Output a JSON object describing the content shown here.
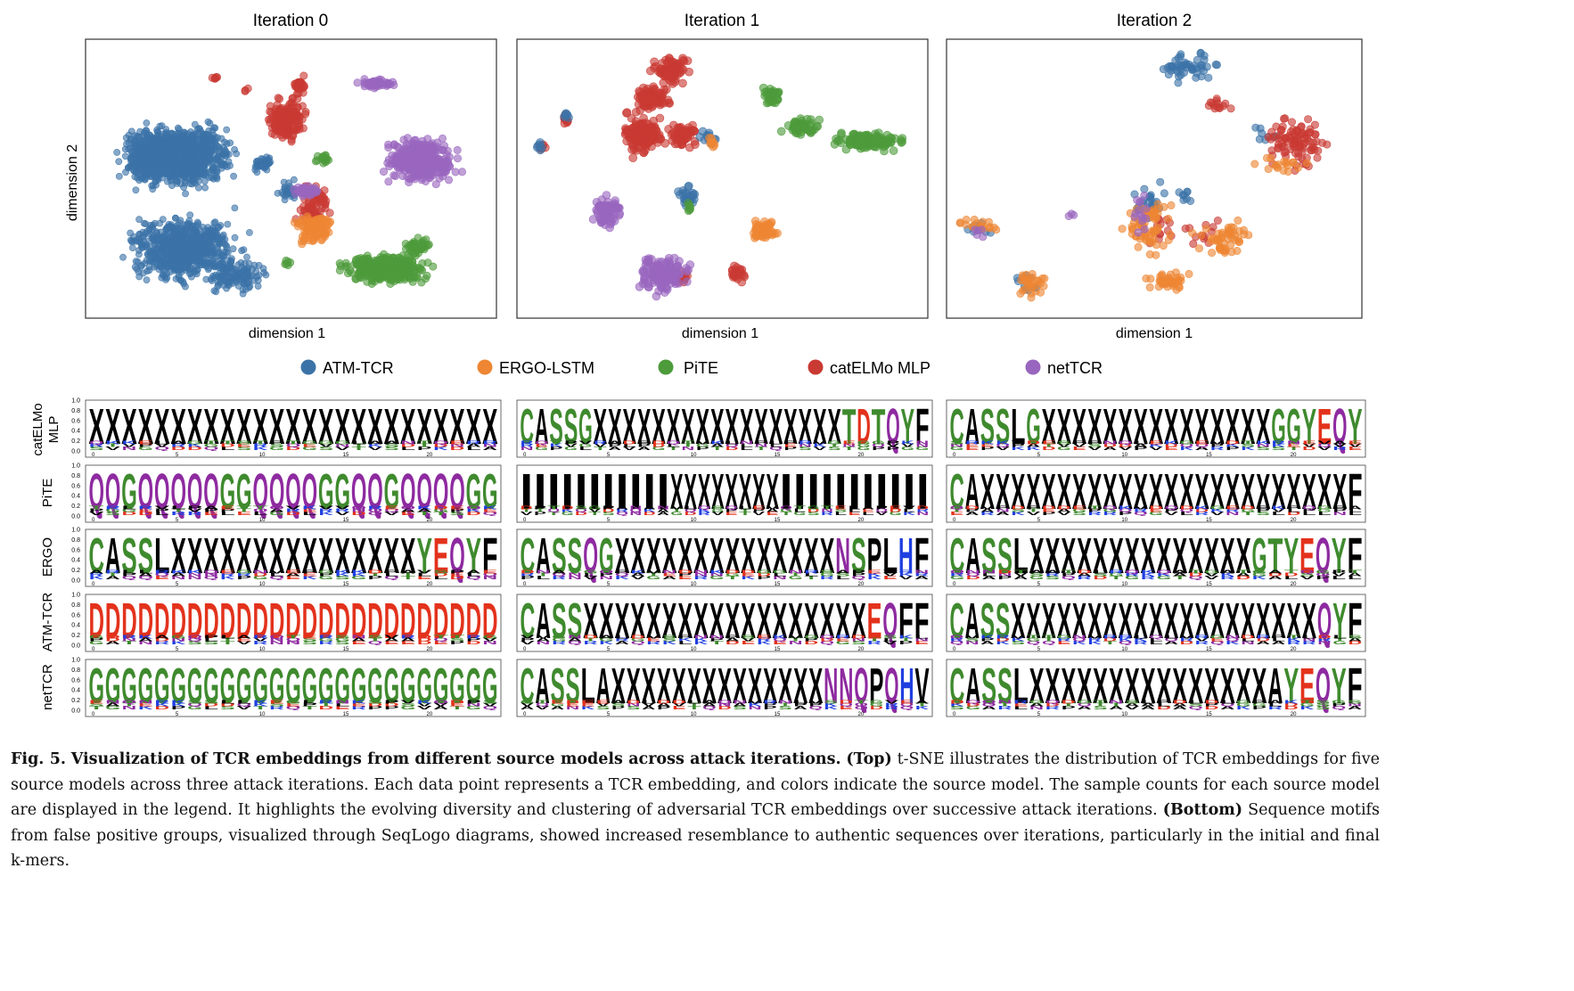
{
  "tsne": {
    "panels": [
      {
        "title": "Iteration 0"
      },
      {
        "title": "Iteration 1"
      },
      {
        "title": "Iteration 2"
      }
    ],
    "xlabel": "dimension 1",
    "ylabel": "dimension 2"
  },
  "legend": [
    {
      "label": "ATM-TCR",
      "color": "#3b73a8"
    },
    {
      "label": "ERGO-LSTM",
      "color": "#ee8633"
    },
    {
      "label": "PiTE",
      "color": "#4d9b3b"
    },
    {
      "label": "catELMo MLP",
      "color": "#c93a33"
    },
    {
      "label": "netTCR",
      "color": "#9966bf"
    }
  ],
  "logos": {
    "row_labels": [
      {
        "lines": [
          "catELMo",
          "MLP"
        ]
      },
      {
        "lines": [
          "PiTE"
        ]
      },
      {
        "lines": [
          "ERGO"
        ]
      },
      {
        "lines": [
          "ATM-TCR"
        ]
      },
      {
        "lines": [
          "netTCR"
        ]
      }
    ],
    "y_ticks": [
      "0.0",
      "0.2",
      "0.4",
      "0.6",
      "0.8",
      "1.0"
    ],
    "x_ticks": [
      "0",
      "5",
      "10",
      "15",
      "20"
    ],
    "colors": {
      "green": "#3f8a2e",
      "red": "#e3321c",
      "blue": "#1f3fe0",
      "purple": "#8e2aa0",
      "black": "#000000"
    },
    "rows": [
      [
        "XXXXXXXXXXXXXXXXXXXXXXXXX",
        "CASSGXXXXXXXXXXXXXXXXXTDTQYF",
        "CASSLGXXXXXXXXXXXXXXXGGYEQY"
      ],
      [
        "QQGQQQQQGGQQQQGGQQGQQQQGG",
        "IIIIIIIIIIIXXXXXXXXIIIIIIIIIII",
        "CAXXXXXXXXXXXXXXXXXXXXXXXXF"
      ],
      [
        "CASSLXXXXXXXXXXXXXXXYEQYF",
        "CASSQGXXXXXXXXXXXXXXNSPLHF",
        "CASSLXXXXXXXXXXXXXXGTYEQYF"
      ],
      [
        "DDDDDDDDDDDDDDDDDDDDDDDDD",
        "CASSXXXXXXXXXXXXXXXXXXEQFF",
        "CASSXXXXXXXXXXXXXXXXXXXXQYF"
      ],
      [
        "GGGGGGGGGGGGGGGGGGGGGGGGG",
        "CASSLAXXXXXXXXXXXXXXNNQPQHV",
        "CASSLXXXXXXXXXXXXXXXAYEQYF"
      ]
    ]
  },
  "caption": {
    "label": "Fig. 5.",
    "title": "Visualization of TCR embeddings from different source models across attack iterations.",
    "top_label": "(Top)",
    "top_text": "t-SNE illustrates the distribution of TCR embeddings for five source models across three attack iterations. Each data point represents a TCR embedding, and colors indicate the source model. The sample counts for each source model are displayed in the legend. It highlights the evolving diversity and clustering of adversarial TCR embeddings over successive attack iterations.",
    "bottom_label": "(Bottom)",
    "bottom_text": "Sequence motifs from false positive groups, visualized through SeqLogo diagrams, showed increased resemblance to authentic sequences over iterations, particularly in the initial and final k-mers."
  }
}
